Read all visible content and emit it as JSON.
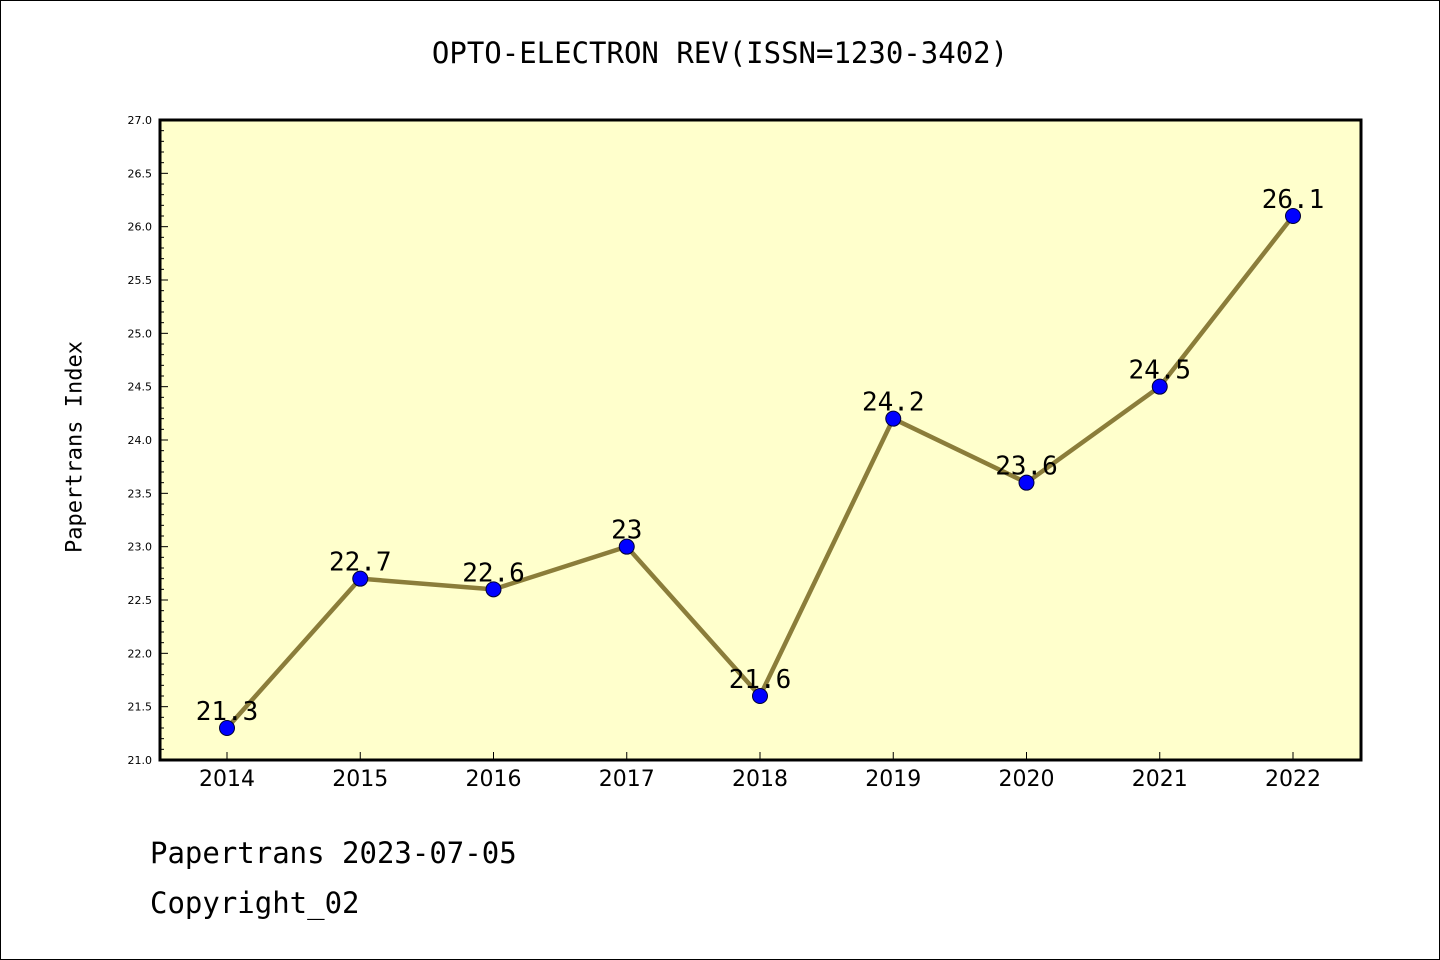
{
  "chart_data": {
    "type": "line",
    "title": "OPTO-ELECTRON REV(ISSN=1230-3402)",
    "xlabel": "",
    "ylabel": "Papertrans Index",
    "categories": [
      "2014",
      "2015",
      "2016",
      "2017",
      "2018",
      "2019",
      "2020",
      "2021",
      "2022"
    ],
    "values": [
      21.3,
      22.7,
      22.6,
      23,
      21.6,
      24.2,
      23.6,
      24.5,
      26.1
    ],
    "data_labels": [
      "21.3",
      "22.7",
      "22.6",
      "23",
      "21.6",
      "24.2",
      "23.6",
      "24.5",
      "26.1"
    ],
    "ylim": [
      21.0,
      27.0
    ],
    "y_ticks": [
      "21.0",
      "21.5",
      "22.0",
      "22.5",
      "23.0",
      "23.5",
      "24.0",
      "24.5",
      "25.0",
      "25.5",
      "26.0",
      "26.5",
      "27.0"
    ],
    "grid": false,
    "colors": {
      "plot_background": "#FFFFCC",
      "line": "#8B7D3A",
      "marker": "#0000FF"
    }
  },
  "footer": {
    "line1": "Papertrans 2023-07-05",
    "line2": "Copyright_02"
  }
}
